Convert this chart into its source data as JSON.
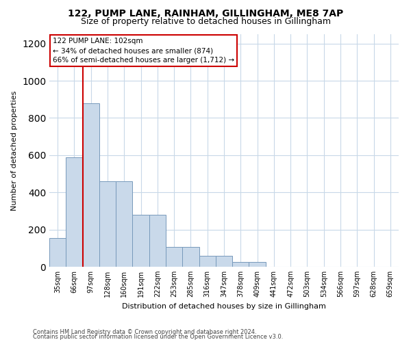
{
  "title": "122, PUMP LANE, RAINHAM, GILLINGHAM, ME8 7AP",
  "subtitle": "Size of property relative to detached houses in Gillingham",
  "xlabel": "Distribution of detached houses by size in Gillingham",
  "ylabel": "Number of detached properties",
  "categories": [
    "35sqm",
    "66sqm",
    "97sqm",
    "128sqm",
    "160sqm",
    "191sqm",
    "222sqm",
    "253sqm",
    "285sqm",
    "316sqm",
    "347sqm",
    "378sqm",
    "409sqm",
    "441sqm",
    "472sqm",
    "503sqm",
    "534sqm",
    "566sqm",
    "597sqm",
    "628sqm",
    "659sqm"
  ],
  "values": [
    155,
    590,
    880,
    460,
    460,
    280,
    280,
    105,
    105,
    60,
    60,
    25,
    25,
    0,
    0,
    0,
    0,
    0,
    0,
    0,
    0
  ],
  "bar_color": "#c9d9ea",
  "bar_edge_color": "#7799bb",
  "vline_x_index": 2,
  "vline_color": "#cc0000",
  "annotation_text": "122 PUMP LANE: 102sqm\n← 34% of detached houses are smaller (874)\n66% of semi-detached houses are larger (1,712) →",
  "annotation_box_color": "#ffffff",
  "annotation_box_edge": "#cc0000",
  "ylim": [
    0,
    1250
  ],
  "yticks": [
    0,
    200,
    400,
    600,
    800,
    1000,
    1200
  ],
  "footer1": "Contains HM Land Registry data © Crown copyright and database right 2024.",
  "footer2": "Contains public sector information licensed under the Open Government Licence v3.0.",
  "bg_color": "#ffffff",
  "grid_color": "#c8d8e8",
  "title_fontsize": 10,
  "subtitle_fontsize": 9,
  "xlabel_fontsize": 8,
  "ylabel_fontsize": 8,
  "tick_fontsize": 7,
  "footer_fontsize": 6
}
